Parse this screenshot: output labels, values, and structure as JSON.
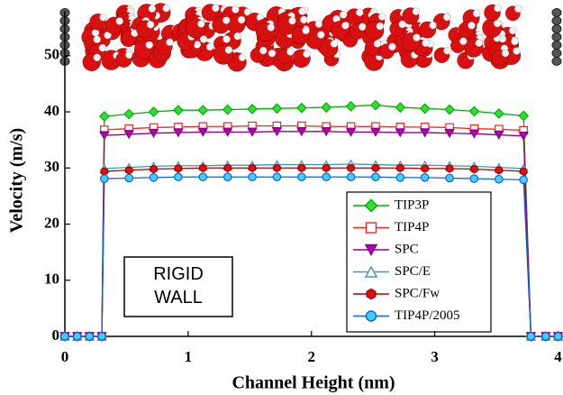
{
  "chart_data": {
    "type": "line",
    "x_label": "Channel Height (nm)",
    "y_label": "Velocity (m/s)",
    "annotation": "RIGID\nWALL",
    "xlim": [
      0,
      4.04
    ],
    "ylim": [
      0,
      58
    ],
    "xticks": [
      0,
      1,
      2,
      3,
      4
    ],
    "yticks": [
      0,
      10,
      20,
      30,
      40,
      50
    ],
    "x": [
      0,
      0.1,
      0.2,
      0.3,
      0.32,
      0.52,
      0.72,
      0.92,
      1.12,
      1.32,
      1.52,
      1.72,
      1.92,
      2.12,
      2.32,
      2.52,
      2.72,
      2.92,
      3.12,
      3.32,
      3.52,
      3.72,
      3.78,
      3.9,
      4.0
    ],
    "series": [
      {
        "name": "TIP3P",
        "color": "#00b000",
        "fill": "#33dd33",
        "marker": "diamond",
        "values": [
          0,
          0,
          0,
          0,
          39.2,
          39.6,
          40,
          40.3,
          40.3,
          40.4,
          40.5,
          40.6,
          40.7,
          40.8,
          41,
          41.2,
          40.8,
          40.6,
          40.4,
          40.1,
          39.7,
          39.3,
          0,
          0,
          0
        ]
      },
      {
        "name": "TIP4P",
        "color": "#ff2020",
        "fill": "#ffffff",
        "marker": "square",
        "values": [
          0,
          0,
          0,
          0,
          36.8,
          37,
          37.2,
          37.3,
          37.4,
          37.4,
          37.5,
          37.5,
          37.5,
          37.4,
          37.4,
          37.4,
          37.3,
          37.3,
          37.2,
          37,
          36.9,
          36.7,
          0,
          0,
          0
        ]
      },
      {
        "name": "SPC",
        "color": "#8a008a",
        "fill": "#b000b0",
        "marker": "triangle-down",
        "values": [
          0,
          0,
          0,
          0,
          35.8,
          36,
          36.2,
          36.3,
          36.4,
          36.4,
          36.4,
          36.5,
          36.5,
          36.5,
          36.4,
          36.4,
          36.3,
          36.3,
          36.2,
          36.1,
          35.9,
          35.7,
          0,
          0,
          0
        ]
      },
      {
        "name": "SPC/E",
        "color": "#3a9ab0",
        "fill": "#ffffff",
        "marker": "triangle-up",
        "values": [
          0,
          0,
          0,
          0,
          29.9,
          30.1,
          30.3,
          30.4,
          30.4,
          30.5,
          30.5,
          30.6,
          30.6,
          30.6,
          30.7,
          30.6,
          30.5,
          30.5,
          30.4,
          30.3,
          30.1,
          29.9,
          0,
          0,
          0
        ]
      },
      {
        "name": "SPC/Fw",
        "color": "#aa0000",
        "fill": "#dd1111",
        "marker": "hexagon",
        "values": [
          0,
          0,
          0,
          0,
          29.4,
          29.6,
          29.8,
          29.9,
          30,
          30,
          30,
          30,
          30,
          30,
          30,
          30,
          30,
          29.9,
          29.9,
          29.8,
          29.6,
          29.4,
          0,
          0,
          0
        ]
      },
      {
        "name": "TIP4P/2005",
        "color": "#1060e0",
        "fill": "#40d0ff",
        "marker": "circle",
        "values": [
          0,
          0,
          0,
          0,
          28.1,
          28.2,
          28.3,
          28.4,
          28.4,
          28.4,
          28.4,
          28.4,
          28.4,
          28.4,
          28.4,
          28.4,
          28.3,
          28.3,
          28.2,
          28.1,
          28,
          27.9,
          0,
          0,
          0
        ]
      }
    ]
  }
}
